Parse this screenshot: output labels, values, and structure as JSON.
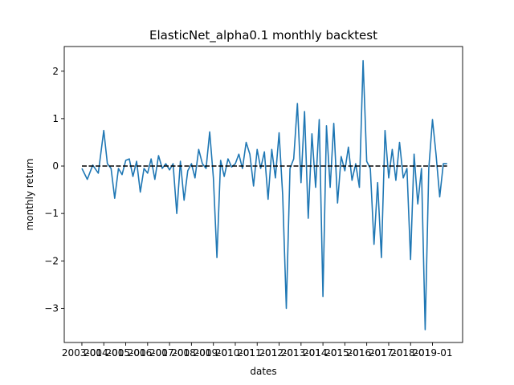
{
  "chart_data": {
    "type": "line",
    "title": "ElasticNet_alpha0.1 monthly backtest",
    "xlabel": "dates",
    "ylabel": "monthly return",
    "ylim": [
      -3.72,
      2.52
    ],
    "xlim": [
      "2002-03-13",
      "2020-05-17"
    ],
    "yticks": [
      2,
      1,
      0,
      -1,
      -2,
      -3
    ],
    "xticks": [
      {
        "date": "2003-01-01",
        "label": "2003-01"
      },
      {
        "date": "2004-01-01",
        "label": "2004-01"
      },
      {
        "date": "2005-01-01",
        "label": "2005-01"
      },
      {
        "date": "2006-01-01",
        "label": "2006-01"
      },
      {
        "date": "2007-01-01",
        "label": "2007-01"
      },
      {
        "date": "2008-01-01",
        "label": "2008-01"
      },
      {
        "date": "2009-01-01",
        "label": "2009-01"
      },
      {
        "date": "2010-01-01",
        "label": "2010-01"
      },
      {
        "date": "2011-01-01",
        "label": "2011-01"
      },
      {
        "date": "2012-01-01",
        "label": "2012-01"
      },
      {
        "date": "2013-01-01",
        "label": "2013-01"
      },
      {
        "date": "2014-01-01",
        "label": "2014-01"
      },
      {
        "date": "2015-01-01",
        "label": "2015-01"
      },
      {
        "date": "2016-01-01",
        "label": "2016-01"
      },
      {
        "date": "2017-01-01",
        "label": "2017-01"
      },
      {
        "date": "2018-01-01",
        "label": "2018-01"
      },
      {
        "date": "2019-01-01",
        "label": "2019-01"
      }
    ],
    "grid": false,
    "series": [
      {
        "color": "#1f77b4",
        "x": [
          "2003-01",
          "2003-04",
          "2003-07",
          "2003-10",
          "2004-01",
          "2004-03",
          "2004-05",
          "2004-07",
          "2004-09",
          "2004-11",
          "2005-01",
          "2005-03",
          "2005-05",
          "2005-07",
          "2005-09",
          "2005-11",
          "2006-01",
          "2006-03",
          "2006-05",
          "2006-07",
          "2006-09",
          "2006-11",
          "2007-01",
          "2007-03",
          "2007-05",
          "2007-07",
          "2007-09",
          "2007-11",
          "2008-01",
          "2008-03",
          "2008-05",
          "2008-07",
          "2008-09",
          "2008-11",
          "2009-01",
          "2009-03",
          "2009-05",
          "2009-07",
          "2009-09",
          "2009-11",
          "2010-01",
          "2010-03",
          "2010-05",
          "2010-07",
          "2010-09",
          "2010-11",
          "2011-01",
          "2011-03",
          "2011-05",
          "2011-07",
          "2011-09",
          "2011-11",
          "2012-01",
          "2012-03",
          "2012-05",
          "2012-07",
          "2012-09",
          "2012-11",
          "2013-01",
          "2013-03",
          "2013-05",
          "2013-07",
          "2013-09",
          "2013-11",
          "2014-01",
          "2014-03",
          "2014-05",
          "2014-07",
          "2014-09",
          "2014-11",
          "2015-01",
          "2015-03",
          "2015-05",
          "2015-07",
          "2015-09",
          "2015-11",
          "2016-01",
          "2016-03",
          "2016-05",
          "2016-07",
          "2016-09",
          "2016-11",
          "2017-01",
          "2017-03",
          "2017-05",
          "2017-07",
          "2017-09",
          "2017-11",
          "2018-01",
          "2018-03",
          "2018-05",
          "2018-07",
          "2018-09",
          "2018-11",
          "2019-01",
          "2019-03",
          "2019-05",
          "2019-07",
          "2019-09"
        ],
        "y": [
          -0.05,
          -0.28,
          0.02,
          -0.15,
          0.75,
          0.05,
          -0.05,
          -0.68,
          -0.05,
          -0.18,
          0.12,
          0.15,
          -0.22,
          0.1,
          -0.55,
          -0.05,
          -0.15,
          0.15,
          -0.28,
          0.22,
          -0.05,
          0.05,
          -0.08,
          0.05,
          -1.0,
          0.1,
          -0.72,
          -0.1,
          0.05,
          -0.25,
          0.35,
          0.05,
          -0.05,
          0.72,
          -0.25,
          -1.93,
          0.12,
          -0.22,
          0.15,
          -0.02,
          0.05,
          0.25,
          -0.05,
          0.5,
          0.25,
          -0.42,
          0.35,
          -0.05,
          0.3,
          -0.7,
          0.35,
          -0.25,
          0.7,
          -0.62,
          -3.0,
          -0.05,
          0.15,
          1.32,
          -0.35,
          1.15,
          -1.1,
          0.68,
          -0.45,
          0.98,
          -2.75,
          0.85,
          -0.45,
          0.9,
          -0.78,
          0.2,
          -0.1,
          0.4,
          -0.3,
          0.05,
          -0.45,
          2.22,
          0.1,
          -0.05,
          -1.65,
          -0.35,
          -1.93,
          0.75,
          -0.25,
          0.35,
          -0.3,
          0.5,
          -0.25,
          -0.05,
          -1.97,
          0.25,
          -0.8,
          -0.05,
          -3.45,
          -0.05,
          0.98,
          0.25,
          -0.65,
          0.05,
          0.05
        ]
      },
      {
        "color": "#000000",
        "style": "dashed",
        "x": [
          "2003-01",
          "2019-09"
        ],
        "y": [
          0,
          0
        ]
      }
    ]
  }
}
